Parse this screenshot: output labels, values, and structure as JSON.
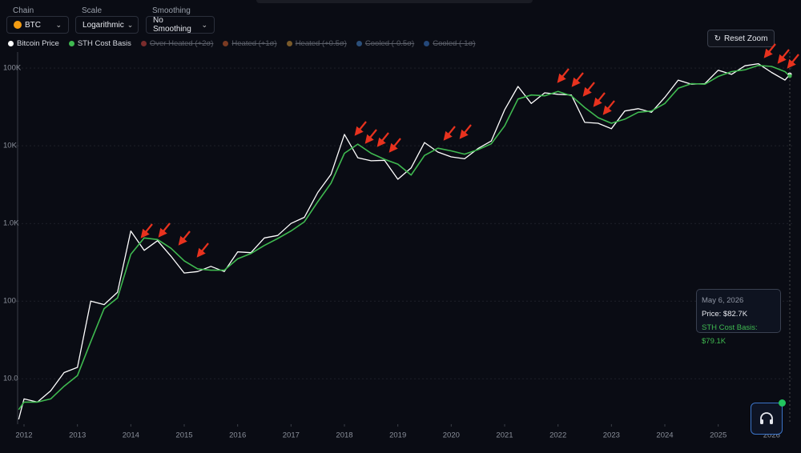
{
  "controls": {
    "chain_label": "Chain",
    "chain_value": "BTC",
    "scale_label": "Scale",
    "scale_value": "Logarithmic",
    "smoothing_label": "Smoothing",
    "smoothing_value": "No Smoothing",
    "reset_button": "Reset Zoom"
  },
  "chart_data": {
    "type": "line",
    "y_scale": "log",
    "grid": true,
    "x": [
      2011.9,
      2012.0,
      2012.25,
      2012.5,
      2012.75,
      2013.0,
      2013.25,
      2013.5,
      2013.75,
      2014.0,
      2014.25,
      2014.5,
      2014.75,
      2015.0,
      2015.25,
      2015.5,
      2015.75,
      2016.0,
      2016.25,
      2016.5,
      2016.75,
      2017.0,
      2017.25,
      2017.5,
      2017.75,
      2018.0,
      2018.25,
      2018.5,
      2018.75,
      2019.0,
      2019.25,
      2019.5,
      2019.75,
      2020.0,
      2020.25,
      2020.5,
      2020.75,
      2021.0,
      2021.25,
      2021.5,
      2021.75,
      2022.0,
      2022.25,
      2022.5,
      2022.75,
      2023.0,
      2023.25,
      2023.5,
      2023.75,
      2024.0,
      2024.25,
      2024.5,
      2024.75,
      2025.0,
      2025.25,
      2025.5,
      2025.75,
      2026.0,
      2026.25,
      2026.34
    ],
    "series": [
      {
        "name": "Bitcoin Price",
        "color": "#ffffff",
        "values": [
          3,
          5.5,
          5,
          7,
          12,
          14,
          100,
          90,
          130,
          800,
          450,
          600,
          380,
          230,
          240,
          280,
          240,
          430,
          420,
          650,
          700,
          1000,
          1200,
          2500,
          4300,
          14000,
          7000,
          6400,
          6500,
          3700,
          5200,
          11000,
          8300,
          7200,
          6800,
          9200,
          11500,
          29000,
          58000,
          35000,
          48000,
          46000,
          45000,
          20000,
          19500,
          16600,
          28000,
          30000,
          27000,
          42000,
          70000,
          62000,
          63000,
          94000,
          83000,
          107000,
          114000,
          88000,
          70000,
          82700
        ]
      },
      {
        "name": "STH Cost Basis",
        "color": "#3fb950",
        "values": [
          4,
          5,
          5,
          5.5,
          8,
          11,
          30,
          80,
          110,
          400,
          650,
          620,
          480,
          330,
          260,
          250,
          250,
          350,
          410,
          520,
          640,
          800,
          1050,
          1900,
          3300,
          8000,
          10500,
          8000,
          6700,
          5800,
          4200,
          7500,
          9300,
          8600,
          7800,
          8900,
          10600,
          18000,
          40000,
          45000,
          44000,
          50000,
          44000,
          31000,
          23000,
          19500,
          22000,
          27000,
          28000,
          35000,
          55000,
          63000,
          62000,
          78000,
          90000,
          95000,
          108000,
          105000,
          90000,
          79100
        ]
      }
    ],
    "inactive_series": [
      {
        "name": "Over Heated (+2σ)",
        "color": "#7a2c2c"
      },
      {
        "name": "Heated (+1σ)",
        "color": "#7a3a22"
      },
      {
        "name": "Heated (+0.5σ)",
        "color": "#7a5a2a"
      },
      {
        "name": "Cooled (-0.5σ)",
        "color": "#2b4f7a"
      },
      {
        "name": "Cooled (-1σ)",
        "color": "#24487a"
      }
    ],
    "xlim": [
      2011.88,
      2026.4
    ],
    "xticks": [
      2012,
      2013,
      2014,
      2015,
      2016,
      2017,
      2018,
      2019,
      2020,
      2021,
      2022,
      2023,
      2024,
      2025,
      2026
    ],
    "ylim": [
      2.6,
      127000
    ],
    "yticks": [
      {
        "value": 10,
        "label": "10.0"
      },
      100,
      {
        "value": 1000,
        "label": "1.0K"
      },
      {
        "value": 10000,
        "label": "10K"
      },
      {
        "value": 100000,
        "label": "100K"
      }
    ],
    "tooltip": {
      "date": "May 6, 2026",
      "price": "Price: $82.7K",
      "sth": "STH Cost Basis: $79.1K"
    }
  }
}
